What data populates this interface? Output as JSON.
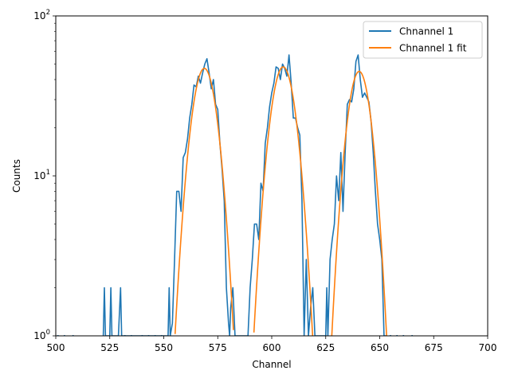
{
  "chart_data": {
    "type": "line",
    "xlabel": "Channel",
    "ylabel": "Counts",
    "xlim": [
      500,
      700
    ],
    "ylim": [
      1,
      100
    ],
    "yscale": "log",
    "grid": false,
    "legend_position": "top-right",
    "x_ticks": [
      500,
      525,
      550,
      575,
      600,
      625,
      650,
      675,
      700
    ],
    "y_ticks": [
      {
        "value": 1,
        "base": "10",
        "exp": "0"
      },
      {
        "value": 10,
        "base": "10",
        "exp": "1"
      },
      {
        "value": 100,
        "base": "10",
        "exp": "2"
      }
    ],
    "series": [
      {
        "name": "Chnannel 1",
        "color": "#1f77b4",
        "points": [
          [
            522,
            1
          ],
          [
            522.5,
            2
          ],
          [
            523,
            1
          ],
          [
            525,
            1
          ],
          [
            525.5,
            2
          ],
          [
            526,
            1
          ],
          [
            529,
            1
          ],
          [
            530,
            2
          ],
          [
            530.5,
            1
          ],
          [
            552,
            1
          ],
          [
            552.5,
            2
          ],
          [
            553,
            1
          ],
          [
            554,
            1.2
          ],
          [
            555,
            3
          ],
          [
            556,
            8
          ],
          [
            557,
            8
          ],
          [
            558,
            6
          ],
          [
            559,
            13
          ],
          [
            560,
            14
          ],
          [
            561,
            17
          ],
          [
            562,
            23
          ],
          [
            563,
            28
          ],
          [
            564,
            37
          ],
          [
            565,
            36
          ],
          [
            566,
            42
          ],
          [
            567,
            38
          ],
          [
            568,
            44
          ],
          [
            569,
            50
          ],
          [
            570,
            54
          ],
          [
            571,
            44
          ],
          [
            572,
            35
          ],
          [
            573,
            40
          ],
          [
            574,
            28
          ],
          [
            575,
            26
          ],
          [
            576,
            16
          ],
          [
            577,
            11
          ],
          [
            578,
            7
          ],
          [
            579,
            2
          ],
          [
            580,
            1.2
          ],
          [
            580.5,
            1
          ],
          [
            581,
            1.5
          ],
          [
            582,
            2
          ],
          [
            583,
            1
          ],
          [
            589,
            1
          ],
          [
            590,
            2
          ],
          [
            591,
            3
          ],
          [
            592,
            5
          ],
          [
            593,
            5
          ],
          [
            594,
            4
          ],
          [
            595,
            9
          ],
          [
            596,
            8
          ],
          [
            597,
            16
          ],
          [
            598,
            20
          ],
          [
            599,
            27
          ],
          [
            600,
            33
          ],
          [
            601,
            38
          ],
          [
            602,
            48
          ],
          [
            603,
            47
          ],
          [
            604,
            40
          ],
          [
            605,
            50
          ],
          [
            606,
            47
          ],
          [
            607,
            42
          ],
          [
            608,
            57
          ],
          [
            609,
            38
          ],
          [
            610,
            23
          ],
          [
            611,
            23
          ],
          [
            612,
            20
          ],
          [
            613,
            18
          ],
          [
            614,
            7
          ],
          [
            615,
            1
          ],
          [
            616,
            3
          ],
          [
            617,
            1
          ],
          [
            618,
            1.5
          ],
          [
            619,
            2
          ],
          [
            620,
            1
          ],
          [
            622,
            1
          ],
          [
            624,
            1
          ],
          [
            625,
            1
          ],
          [
            625.5,
            2
          ],
          [
            626,
            1
          ],
          [
            627,
            3
          ],
          [
            628,
            4
          ],
          [
            629,
            5
          ],
          [
            630,
            10
          ],
          [
            631,
            7
          ],
          [
            632,
            14
          ],
          [
            633,
            6
          ],
          [
            634,
            14
          ],
          [
            635,
            28
          ],
          [
            636,
            30
          ],
          [
            637,
            29
          ],
          [
            638,
            35
          ],
          [
            639,
            52
          ],
          [
            640,
            57
          ],
          [
            641,
            40
          ],
          [
            642,
            31
          ],
          [
            643,
            33
          ],
          [
            644,
            31
          ],
          [
            645,
            29
          ],
          [
            646,
            22
          ],
          [
            647,
            14
          ],
          [
            648,
            8
          ],
          [
            649,
            5
          ],
          [
            650,
            4
          ],
          [
            651,
            3
          ],
          [
            652,
            1
          ],
          [
            653,
            1
          ]
        ]
      },
      {
        "name": "Chnannel 1 fit",
        "color": "#ff7f0e",
        "peaks": [
          {
            "center": 568.8,
            "amplitude": 47,
            "sigma": 4.9,
            "from": 552,
            "to": 585
          },
          {
            "center": 605.3,
            "amplitude": 48,
            "sigma": 4.9,
            "from": 588,
            "to": 622
          },
          {
            "center": 640.5,
            "amplitude": 45,
            "sigma": 4.6,
            "from": 624,
            "to": 657
          }
        ]
      }
    ]
  }
}
